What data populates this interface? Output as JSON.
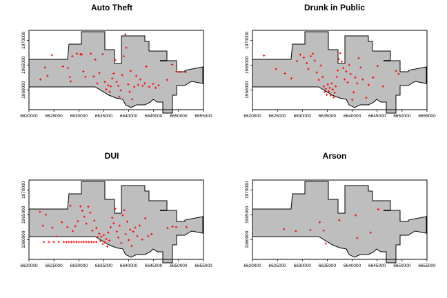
{
  "chart_data": [
    {
      "type": "scatter",
      "title": "Auto Theft",
      "color": "#ff0000",
      "xlim": [
        6620000,
        6655000
      ],
      "ylim": [
        1956000,
        1972000
      ],
      "x_ticks": [
        "6620000",
        "6625000",
        "6630000",
        "6635000",
        "6640000",
        "6645000",
        "6650000",
        "6655000"
      ],
      "y_ticks": [
        "1960000",
        "1965000",
        "1970000"
      ],
      "points": [
        [
          6622300,
          1962100
        ],
        [
          6623200,
          1964500
        ],
        [
          6623700,
          1962800
        ],
        [
          6624600,
          1967000
        ],
        [
          6626800,
          1964700
        ],
        [
          6627800,
          1964400
        ],
        [
          6628200,
          1962600
        ],
        [
          6628400,
          1961700
        ],
        [
          6628700,
          1966800
        ],
        [
          6629600,
          1967300
        ],
        [
          6630300,
          1967200
        ],
        [
          6630600,
          1967100
        ],
        [
          6630900,
          1963700
        ],
        [
          6631300,
          1962600
        ],
        [
          6632400,
          1967300
        ],
        [
          6633000,
          1962700
        ],
        [
          6633300,
          1966100
        ],
        [
          6633700,
          1961300
        ],
        [
          6634100,
          1963400
        ],
        [
          6634800,
          1967200
        ],
        [
          6635200,
          1961600
        ],
        [
          6635500,
          1960100
        ],
        [
          6635900,
          1960900
        ],
        [
          6636200,
          1959600
        ],
        [
          6636400,
          1960700
        ],
        [
          6636700,
          1962300
        ],
        [
          6637000,
          1963300
        ],
        [
          6637300,
          1966000
        ],
        [
          6637600,
          1961600
        ],
        [
          6637900,
          1960800
        ],
        [
          6638100,
          1958600
        ],
        [
          6638400,
          1959900
        ],
        [
          6638700,
          1963000
        ],
        [
          6639000,
          1966800
        ],
        [
          6639300,
          1971200
        ],
        [
          6639500,
          1968500
        ],
        [
          6639900,
          1961100
        ],
        [
          6640200,
          1959600
        ],
        [
          6640400,
          1963800
        ],
        [
          6640700,
          1958100
        ],
        [
          6641100,
          1960600
        ],
        [
          6641500,
          1962800
        ],
        [
          6641900,
          1961000
        ],
        [
          6642300,
          1962100
        ],
        [
          6642800,
          1960800
        ],
        [
          6643200,
          1961300
        ],
        [
          6643500,
          1964700
        ],
        [
          6644100,
          1960600
        ],
        [
          6644900,
          1961200
        ],
        [
          6645400,
          1960400
        ],
        [
          6646000,
          1960900
        ],
        [
          6647700,
          1962000
        ],
        [
          6648700,
          1965100
        ],
        [
          6649600,
          1963700
        ],
        [
          6650300,
          1963600
        ],
        [
          6651400,
          1963600
        ]
      ]
    },
    {
      "type": "scatter",
      "title": "Drunk in Public",
      "color": "#ff0000",
      "xlim": [
        6620000,
        6655000
      ],
      "ylim": [
        1956000,
        1972000
      ],
      "x_ticks": [
        "6620000",
        "6625000",
        "6630000",
        "6635000",
        "6640000",
        "6645000",
        "6650000",
        "6655000"
      ],
      "y_ticks": [
        "1960000",
        "1965000",
        "1970000"
      ],
      "points": [
        [
          6622300,
          1966900
        ],
        [
          6624700,
          1964200
        ],
        [
          6626500,
          1963300
        ],
        [
          6627800,
          1962300
        ],
        [
          6628900,
          1965800
        ],
        [
          6629600,
          1967100
        ],
        [
          6630300,
          1966500
        ],
        [
          6630900,
          1965400
        ],
        [
          6631200,
          1964200
        ],
        [
          6631700,
          1966800
        ],
        [
          6632100,
          1967300
        ],
        [
          6632500,
          1965900
        ],
        [
          6632900,
          1963500
        ],
        [
          6633300,
          1962000
        ],
        [
          6633700,
          1964900
        ],
        [
          6634100,
          1962600
        ],
        [
          6634300,
          1960700
        ],
        [
          6634500,
          1959600
        ],
        [
          6634700,
          1960200
        ],
        [
          6634900,
          1959000
        ],
        [
          6635100,
          1961100
        ],
        [
          6635300,
          1959700
        ],
        [
          6635500,
          1960400
        ],
        [
          6635700,
          1958900
        ],
        [
          6635900,
          1961300
        ],
        [
          6636100,
          1960100
        ],
        [
          6636300,
          1958500
        ],
        [
          6636500,
          1959400
        ],
        [
          6636700,
          1960700
        ],
        [
          6636900,
          1962600
        ],
        [
          6637100,
          1963900
        ],
        [
          6637300,
          1966200
        ],
        [
          6637600,
          1967400
        ],
        [
          6637900,
          1965700
        ],
        [
          6638200,
          1964400
        ],
        [
          6638500,
          1962100
        ],
        [
          6638800,
          1963700
        ],
        [
          6639100,
          1961500
        ],
        [
          6639400,
          1965000
        ],
        [
          6639700,
          1963200
        ],
        [
          6640000,
          1958000
        ],
        [
          6640300,
          1959500
        ],
        [
          6640600,
          1962500
        ],
        [
          6641000,
          1961300
        ],
        [
          6641300,
          1966400
        ],
        [
          6641700,
          1964500
        ],
        [
          6642100,
          1962100
        ],
        [
          6642800,
          1958400
        ],
        [
          6643300,
          1961000
        ],
        [
          6644200,
          1962500
        ],
        [
          6645100,
          1964800
        ],
        [
          6646200,
          1960700
        ],
        [
          6648800,
          1963800
        ],
        [
          6649300,
          1963200
        ]
      ]
    },
    {
      "type": "scatter",
      "title": "DUI",
      "color": "#ff0000",
      "xlim": [
        6620000,
        6655000
      ],
      "ylim": [
        1956000,
        1972000
      ],
      "x_ticks": [
        "6620000",
        "6625000",
        "6630000",
        "6635000",
        "6640000",
        "6645000",
        "6650000",
        "6655000"
      ],
      "y_ticks": [
        "1960000",
        "1965000",
        "1970000"
      ],
      "points": [
        [
          6622200,
          1965600
        ],
        [
          6622800,
          1962800
        ],
        [
          6623400,
          1965000
        ],
        [
          6624700,
          1962400
        ],
        [
          6625600,
          1960600
        ],
        [
          6626600,
          1963500
        ],
        [
          6627700,
          1962500
        ],
        [
          6628300,
          1966800
        ],
        [
          6628800,
          1961700
        ],
        [
          6629300,
          1962700
        ],
        [
          6629800,
          1963700
        ],
        [
          6630300,
          1966700
        ],
        [
          6630700,
          1965800
        ],
        [
          6631100,
          1964600
        ],
        [
          6631500,
          1963200
        ],
        [
          6631900,
          1966600
        ],
        [
          6632300,
          1965400
        ],
        [
          6632700,
          1961800
        ],
        [
          6633100,
          1963800
        ],
        [
          6633500,
          1962300
        ],
        [
          6633800,
          1960500
        ],
        [
          6634100,
          1961200
        ],
        [
          6634300,
          1959700
        ],
        [
          6634500,
          1960600
        ],
        [
          6634800,
          1959100
        ],
        [
          6635000,
          1960900
        ],
        [
          6635200,
          1959400
        ],
        [
          6635500,
          1960100
        ],
        [
          6635700,
          1958600
        ],
        [
          6635900,
          1961400
        ],
        [
          6636100,
          1959800
        ],
        [
          6636400,
          1962500
        ],
        [
          6636700,
          1964400
        ],
        [
          6637000,
          1963300
        ],
        [
          6637300,
          1966200
        ],
        [
          6637600,
          1961600
        ],
        [
          6637900,
          1960400
        ],
        [
          6638200,
          1962800
        ],
        [
          6638500,
          1959300
        ],
        [
          6638800,
          1964900
        ],
        [
          6639100,
          1965900
        ],
        [
          6639400,
          1961100
        ],
        [
          6639700,
          1963600
        ],
        [
          6640000,
          1959900
        ],
        [
          6640300,
          1962000
        ],
        [
          6640600,
          1958700
        ],
        [
          6640900,
          1961600
        ],
        [
          6641300,
          1962400
        ],
        [
          6641700,
          1960700
        ],
        [
          6642200,
          1962800
        ],
        [
          6642700,
          1960000
        ],
        [
          6643300,
          1964300
        ],
        [
          6643900,
          1960700
        ],
        [
          6644600,
          1961100
        ],
        [
          6647800,
          1962300
        ],
        [
          6648800,
          1962600
        ],
        [
          6649500,
          1962500
        ],
        [
          6651600,
          1962500
        ]
      ],
      "row_points_y": 1959500,
      "row_points_x": [
        6623000,
        6624000,
        6625000,
        6626000,
        6627000,
        6627500,
        6628000,
        6628500,
        6629000,
        6629500,
        6630000,
        6630500,
        6631000,
        6631500,
        6632000,
        6632500,
        6633000,
        6633500
      ]
    },
    {
      "type": "scatter",
      "title": "Arson",
      "color": "#ff0000",
      "xlim": [
        6620000,
        6655000
      ],
      "ylim": [
        1956000,
        1972000
      ],
      "x_ticks": [
        "6620000",
        "6625000",
        "6630000",
        "6635000",
        "6640000",
        "6645000",
        "6650000",
        "6655000"
      ],
      "y_ticks": [
        "1960000",
        "1965000",
        "1970000"
      ],
      "points": [
        [
          6626300,
          1962100
        ],
        [
          6628700,
          1961700
        ],
        [
          6631600,
          1961900
        ],
        [
          6633500,
          1963500
        ],
        [
          6634300,
          1961800
        ],
        [
          6634700,
          1959200
        ],
        [
          6637400,
          1963900
        ],
        [
          6640700,
          1964900
        ],
        [
          6641000,
          1960300
        ],
        [
          6643700,
          1961400
        ],
        [
          6645200,
          1966100
        ]
      ]
    }
  ]
}
